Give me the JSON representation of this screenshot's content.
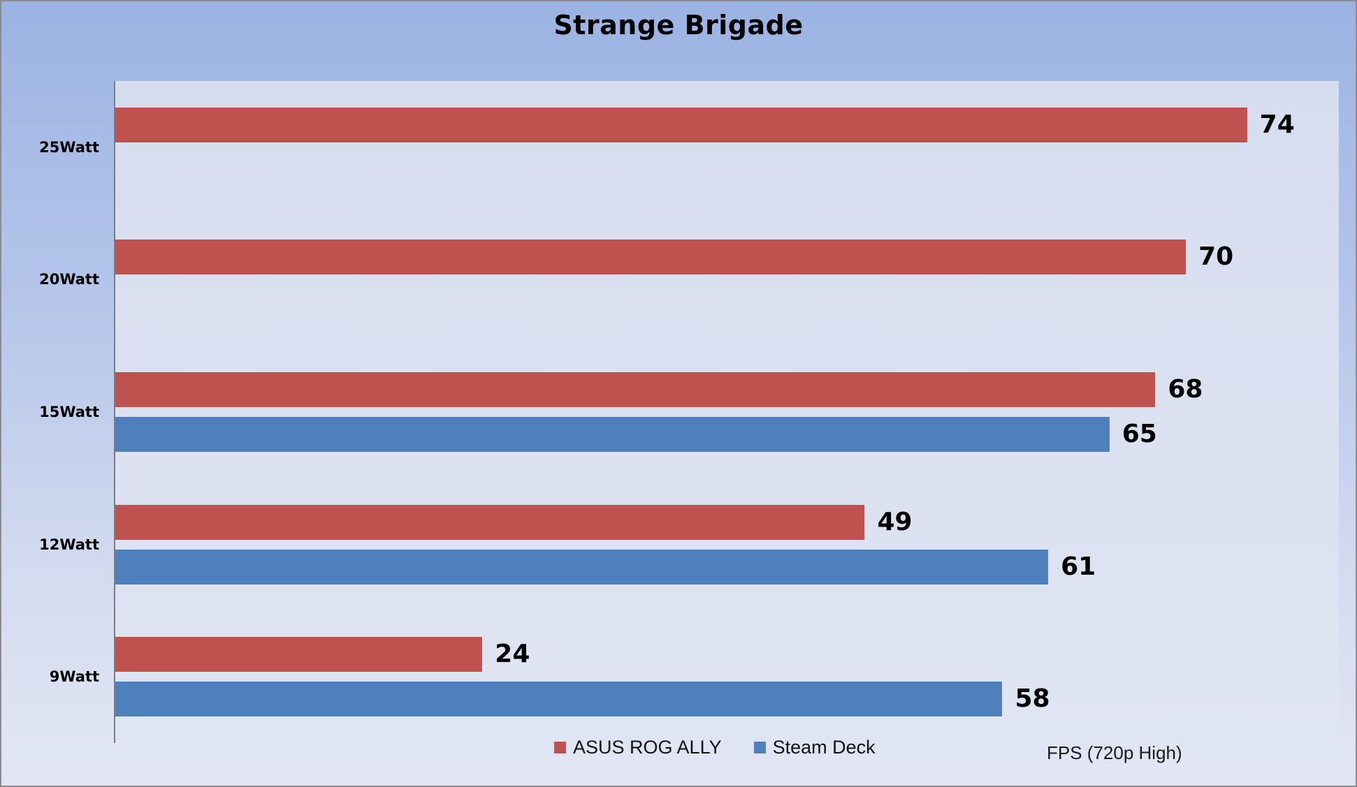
{
  "chart_data": {
    "type": "bar",
    "orientation": "horizontal",
    "title": "Strange Brigade",
    "categories": [
      "25Watt",
      "20Watt",
      "15Watt",
      "12Watt",
      "9Watt"
    ],
    "series": [
      {
        "name": "ASUS ROG ALLY",
        "color": "#bf514f",
        "values": [
          74,
          70,
          68,
          49,
          24
        ]
      },
      {
        "name": "Steam Deck",
        "color": "#4e80bd",
        "values": [
          null,
          null,
          65,
          61,
          58
        ]
      }
    ],
    "xlim": [
      0,
      80
    ],
    "xlabel": "",
    "ylabel": "",
    "grid": false,
    "legend_position": "bottom",
    "value_labels": true,
    "axis_note": "FPS (720p High)"
  }
}
